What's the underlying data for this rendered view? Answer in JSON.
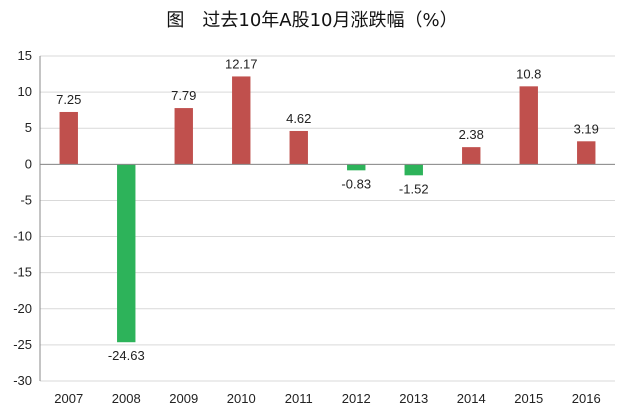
{
  "chart_data": {
    "type": "bar",
    "title": "图　过去10年A股10月涨跌幅（%）",
    "categories": [
      "2007",
      "2008",
      "2009",
      "2010",
      "2011",
      "2012",
      "2013",
      "2014",
      "2015",
      "2016"
    ],
    "values": [
      7.25,
      -24.63,
      7.79,
      12.17,
      4.62,
      -0.83,
      -1.52,
      2.38,
      10.8,
      3.19
    ],
    "value_labels": [
      "7.25",
      "-24.63",
      "7.79",
      "12.17",
      "4.62",
      "-0.83",
      "-1.52",
      "2.38",
      "10.8",
      "3.19"
    ],
    "ylim": [
      -30,
      15
    ],
    "yticks": [
      15,
      10,
      5,
      0,
      -5,
      -10,
      -15,
      -20,
      -25,
      -30
    ],
    "grid": true,
    "colors": {
      "positive": "#c0504d",
      "negative": "#2db35a",
      "grid": "#d9d9d9",
      "axis": "#888888"
    }
  }
}
